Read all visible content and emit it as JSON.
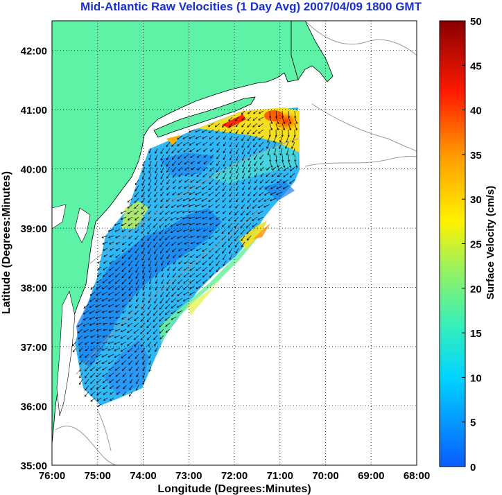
{
  "title": "Mid-Atlantic Raw Velocities (1 Day Avg) 2007/04/09 1800 GMT",
  "map": {
    "xlabel": "Longitude (Degrees:Minutes)",
    "ylabel": "Latitude (Degrees:Minutes)",
    "x_ticks": [
      "76:00",
      "75:00",
      "74:00",
      "73:00",
      "72:00",
      "71:00",
      "70:00",
      "69:00",
      "68:00"
    ],
    "y_ticks": [
      "35:00",
      "36:00",
      "37:00",
      "38:00",
      "39:00",
      "40:00",
      "41:00",
      "42:00"
    ],
    "lon_range": [
      -76,
      -68
    ],
    "lat_range": [
      35,
      42.5
    ],
    "land_color": "#5ef2a6",
    "grid": "dotted"
  },
  "colorbar": {
    "label": "Surface Velocity (cm/s)",
    "ticks": [
      "0",
      "5",
      "10",
      "15",
      "20",
      "25",
      "30",
      "35",
      "40",
      "45",
      "50"
    ],
    "range": [
      0,
      50
    ],
    "colormap": "jet"
  }
}
